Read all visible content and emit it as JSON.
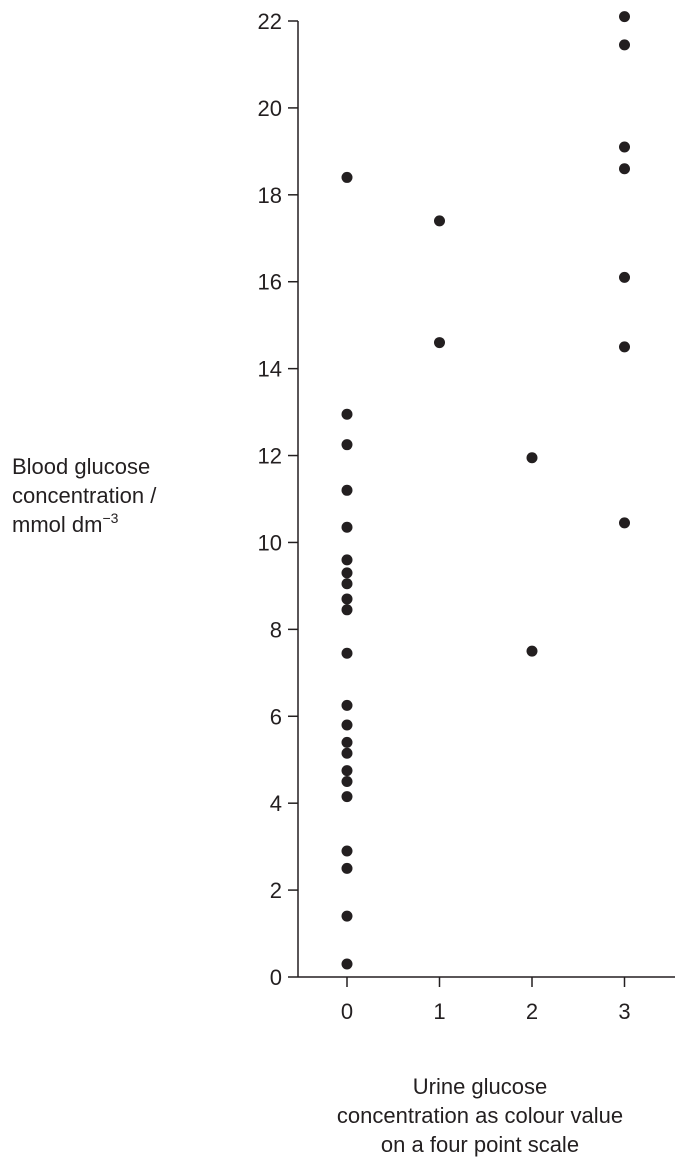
{
  "chart_data": {
    "type": "scatter",
    "title": "",
    "ylabel": {
      "line1": "Blood glucose",
      "line2": "concentration /",
      "line3_main": "mmol dm",
      "line3_sup": "−3"
    },
    "xlabel": {
      "line1": "Urine glucose",
      "line2": "concentration as colour value",
      "line3": "on a four point scale"
    },
    "xlim": [
      -0.5,
      3.5
    ],
    "ylim": [
      0,
      22
    ],
    "xticks": [
      "0",
      "1",
      "2",
      "3"
    ],
    "yticks": [
      "0",
      "2",
      "4",
      "6",
      "8",
      "10",
      "12",
      "14",
      "16",
      "18",
      "20",
      "22"
    ],
    "grid": false,
    "points": [
      {
        "x": 0,
        "y": 0.3
      },
      {
        "x": 0,
        "y": 1.4
      },
      {
        "x": 0,
        "y": 2.5
      },
      {
        "x": 0,
        "y": 2.9
      },
      {
        "x": 0,
        "y": 4.15
      },
      {
        "x": 0,
        "y": 4.5
      },
      {
        "x": 0,
        "y": 4.75
      },
      {
        "x": 0,
        "y": 5.15
      },
      {
        "x": 0,
        "y": 5.4
      },
      {
        "x": 0,
        "y": 5.8
      },
      {
        "x": 0,
        "y": 6.25
      },
      {
        "x": 0,
        "y": 7.45
      },
      {
        "x": 0,
        "y": 8.45
      },
      {
        "x": 0,
        "y": 8.7
      },
      {
        "x": 0,
        "y": 9.05
      },
      {
        "x": 0,
        "y": 9.3
      },
      {
        "x": 0,
        "y": 9.6
      },
      {
        "x": 0,
        "y": 10.35
      },
      {
        "x": 0,
        "y": 11.2
      },
      {
        "x": 0,
        "y": 12.25
      },
      {
        "x": 0,
        "y": 12.95
      },
      {
        "x": 0,
        "y": 18.4
      },
      {
        "x": 1,
        "y": 14.6
      },
      {
        "x": 1,
        "y": 17.4
      },
      {
        "x": 2,
        "y": 7.5
      },
      {
        "x": 2,
        "y": 11.95
      },
      {
        "x": 3,
        "y": 10.45
      },
      {
        "x": 3,
        "y": 14.5
      },
      {
        "x": 3,
        "y": 16.1
      },
      {
        "x": 3,
        "y": 18.6
      },
      {
        "x": 3,
        "y": 19.1
      },
      {
        "x": 3,
        "y": 21.45
      },
      {
        "x": 3,
        "y": 22.1
      }
    ],
    "marker_color": "#231f20",
    "axis_color": "#231f20"
  }
}
